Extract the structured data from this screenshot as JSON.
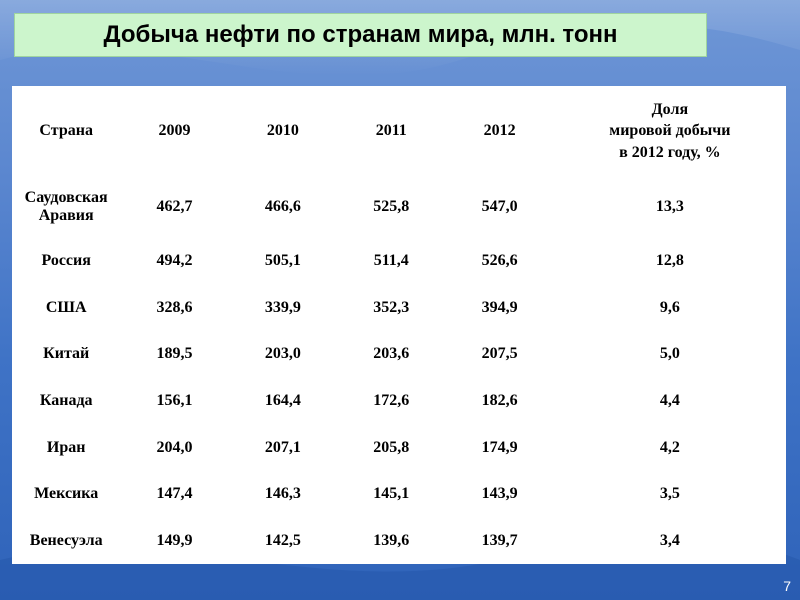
{
  "slide": {
    "title": "Добыча нефти по странам мира, млн. тонн",
    "page_number": "7"
  },
  "table": {
    "headers": [
      "Страна",
      "2009",
      "2010",
      "2011",
      "2012"
    ],
    "share_header": [
      "Доля",
      "мировой  добычи",
      "в  2012  году, %"
    ],
    "rows": [
      {
        "country": [
          "Саудовская",
          "Аравия"
        ],
        "values": [
          "462,7",
          "466,6",
          "525,8",
          "547,0",
          "13,3"
        ]
      },
      {
        "country": [
          "Россия"
        ],
        "values": [
          "494,2",
          "505,1",
          "511,4",
          "526,6",
          "12,8"
        ]
      },
      {
        "country": [
          "США"
        ],
        "values": [
          "328,6",
          "339,9",
          "352,3",
          "394,9",
          "9,6"
        ]
      },
      {
        "country": [
          "Китай"
        ],
        "values": [
          "189,5",
          "203,0",
          "203,6",
          "207,5",
          "5,0"
        ]
      },
      {
        "country": [
          "Канада"
        ],
        "values": [
          "156,1",
          "164,4",
          "172,6",
          "182,6",
          "4,4"
        ]
      },
      {
        "country": [
          "Иран"
        ],
        "values": [
          "204,0",
          "207,1",
          "205,8",
          "174,9",
          "4,2"
        ]
      },
      {
        "country": [
          "Мексика"
        ],
        "values": [
          "147,4",
          "146,3",
          "145,1",
          "143,9",
          "3,5"
        ]
      },
      {
        "country": [
          "Венесуэла"
        ],
        "values": [
          "149,9",
          "142,5",
          "139,6",
          "139,7",
          "3,4"
        ]
      }
    ]
  }
}
